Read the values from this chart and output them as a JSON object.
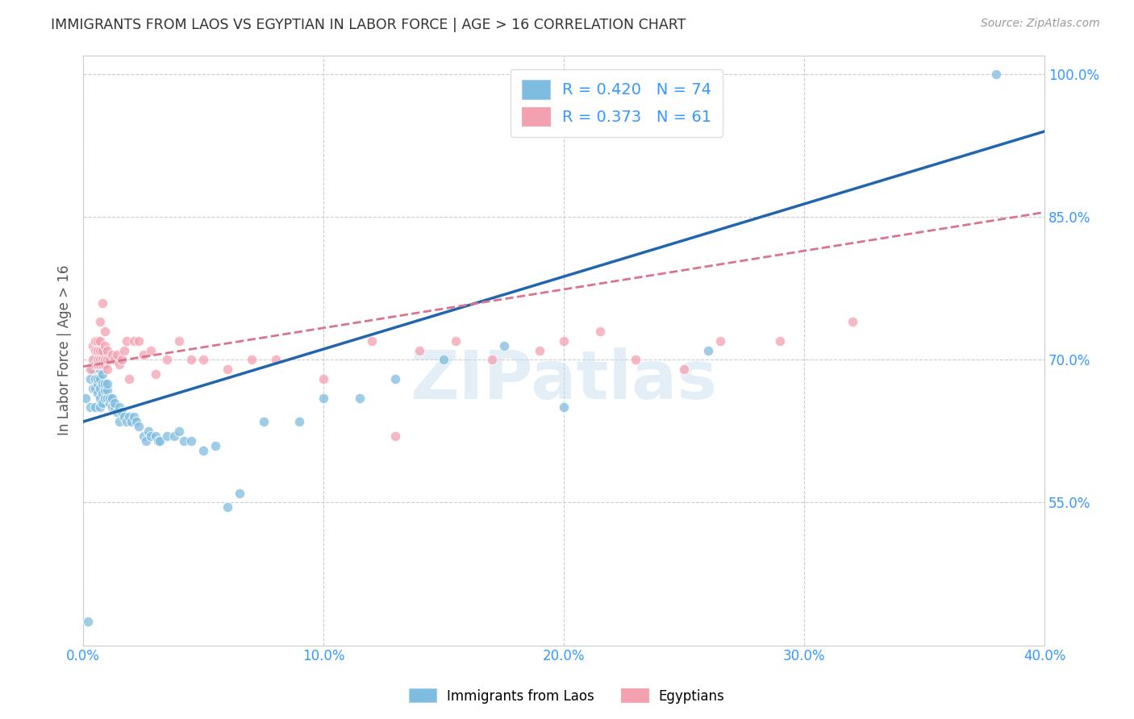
{
  "title": "IMMIGRANTS FROM LAOS VS EGYPTIAN IN LABOR FORCE | AGE > 16 CORRELATION CHART",
  "source": "Source: ZipAtlas.com",
  "ylabel": "In Labor Force | Age > 16",
  "xlim": [
    0.0,
    0.4
  ],
  "ylim": [
    0.4,
    1.02
  ],
  "yticks": [
    0.55,
    0.7,
    0.85,
    1.0
  ],
  "ytick_labels": [
    "55.0%",
    "70.0%",
    "85.0%",
    "100.0%"
  ],
  "xticks": [
    0.0,
    0.1,
    0.2,
    0.3,
    0.4
  ],
  "xtick_labels": [
    "0.0%",
    "10.0%",
    "20.0%",
    "30.0%",
    "40.0%"
  ],
  "laos_R": 0.42,
  "laos_N": 74,
  "egypt_R": 0.373,
  "egypt_N": 61,
  "laos_color": "#7fbde0",
  "egypt_color": "#f4a0b0",
  "laos_line_color": "#2166ac",
  "egypt_line_color": "#d9748e",
  "watermark": "ZIPatlas",
  "legend_labels": [
    "Immigrants from Laos",
    "Egyptians"
  ],
  "laos_x": [
    0.001,
    0.002,
    0.003,
    0.003,
    0.004,
    0.004,
    0.004,
    0.005,
    0.005,
    0.005,
    0.005,
    0.006,
    0.006,
    0.006,
    0.006,
    0.007,
    0.007,
    0.007,
    0.007,
    0.007,
    0.007,
    0.008,
    0.008,
    0.008,
    0.008,
    0.009,
    0.009,
    0.009,
    0.01,
    0.01,
    0.01,
    0.011,
    0.011,
    0.012,
    0.012,
    0.013,
    0.013,
    0.014,
    0.015,
    0.015,
    0.016,
    0.017,
    0.018,
    0.019,
    0.02,
    0.021,
    0.022,
    0.023,
    0.025,
    0.026,
    0.027,
    0.028,
    0.03,
    0.031,
    0.032,
    0.035,
    0.038,
    0.04,
    0.042,
    0.045,
    0.05,
    0.055,
    0.06,
    0.065,
    0.075,
    0.09,
    0.1,
    0.115,
    0.13,
    0.15,
    0.175,
    0.2,
    0.26,
    0.38
  ],
  "laos_y": [
    0.66,
    0.425,
    0.65,
    0.68,
    0.67,
    0.69,
    0.695,
    0.65,
    0.67,
    0.68,
    0.7,
    0.665,
    0.675,
    0.68,
    0.7,
    0.65,
    0.66,
    0.67,
    0.68,
    0.69,
    0.7,
    0.655,
    0.665,
    0.675,
    0.685,
    0.66,
    0.668,
    0.675,
    0.66,
    0.668,
    0.675,
    0.655,
    0.66,
    0.65,
    0.66,
    0.65,
    0.655,
    0.645,
    0.635,
    0.65,
    0.645,
    0.64,
    0.635,
    0.64,
    0.635,
    0.64,
    0.635,
    0.63,
    0.62,
    0.615,
    0.625,
    0.62,
    0.62,
    0.615,
    0.615,
    0.62,
    0.62,
    0.625,
    0.615,
    0.615,
    0.605,
    0.61,
    0.545,
    0.56,
    0.635,
    0.635,
    0.66,
    0.66,
    0.68,
    0.7,
    0.715,
    0.65,
    0.71,
    1.0
  ],
  "egypt_x": [
    0.003,
    0.004,
    0.004,
    0.005,
    0.005,
    0.005,
    0.006,
    0.006,
    0.006,
    0.006,
    0.007,
    0.007,
    0.007,
    0.007,
    0.007,
    0.008,
    0.008,
    0.008,
    0.008,
    0.009,
    0.009,
    0.009,
    0.009,
    0.01,
    0.01,
    0.01,
    0.011,
    0.012,
    0.013,
    0.014,
    0.015,
    0.016,
    0.017,
    0.018,
    0.019,
    0.021,
    0.023,
    0.025,
    0.028,
    0.03,
    0.035,
    0.04,
    0.045,
    0.05,
    0.06,
    0.07,
    0.08,
    0.1,
    0.12,
    0.13,
    0.14,
    0.155,
    0.17,
    0.19,
    0.2,
    0.215,
    0.23,
    0.25,
    0.265,
    0.29,
    0.32
  ],
  "egypt_y": [
    0.69,
    0.7,
    0.715,
    0.695,
    0.71,
    0.72,
    0.695,
    0.7,
    0.71,
    0.72,
    0.695,
    0.7,
    0.71,
    0.72,
    0.74,
    0.695,
    0.7,
    0.71,
    0.76,
    0.695,
    0.7,
    0.715,
    0.73,
    0.69,
    0.7,
    0.71,
    0.7,
    0.705,
    0.7,
    0.705,
    0.695,
    0.7,
    0.71,
    0.72,
    0.68,
    0.72,
    0.72,
    0.705,
    0.71,
    0.685,
    0.7,
    0.72,
    0.7,
    0.7,
    0.69,
    0.7,
    0.7,
    0.68,
    0.72,
    0.62,
    0.71,
    0.72,
    0.7,
    0.71,
    0.72,
    0.73,
    0.7,
    0.69,
    0.72,
    0.72,
    0.74
  ],
  "laos_line_x0": 0.0,
  "laos_line_y0": 0.635,
  "laos_line_x1": 0.4,
  "laos_line_y1": 0.94,
  "egypt_line_x0": 0.0,
  "egypt_line_y0": 0.693,
  "egypt_line_x1": 0.4,
  "egypt_line_y1": 0.855
}
